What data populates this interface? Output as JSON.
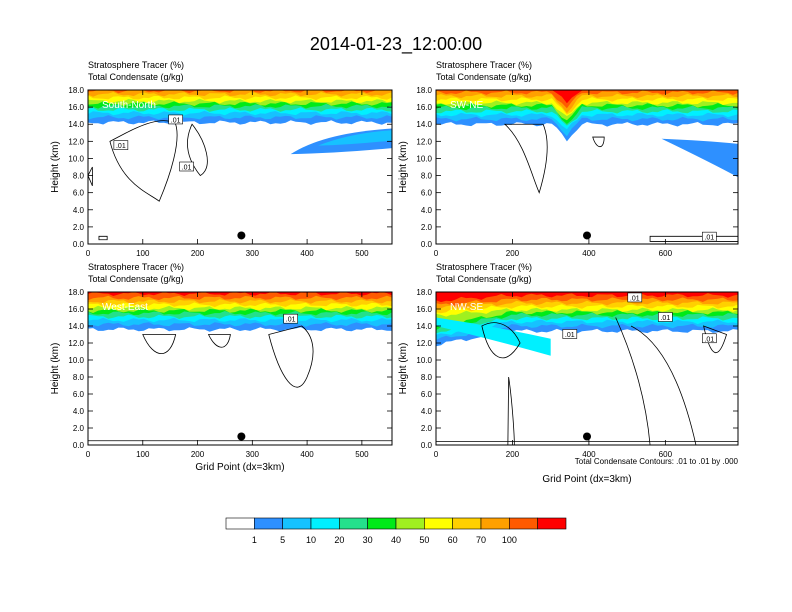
{
  "title": "2014-01-23_12:00:00",
  "label_left": "Stratosphere Tracer   (%)",
  "label_right": "Total Condensate   (g/kg)",
  "panel_left_units": "Stratosphere Tracer",
  "contour_note": "Total Condensate Contours: .01 to .01 by .000",
  "xlabel": "Grid Point (dx=3km)",
  "ylabel": "Height (km)",
  "colorbar": {
    "colors": [
      "#ffffff",
      "#2e90ff",
      "#16c2ff",
      "#00f0ff",
      "#24e08c",
      "#00ea18",
      "#a0f020",
      "#ffff00",
      "#ffd000",
      "#ffa000",
      "#ff5a00",
      "#ff0000"
    ],
    "labels": [
      "1",
      "5",
      "10",
      "20",
      "30",
      "40",
      "50",
      "60",
      "70",
      "100"
    ]
  },
  "chart_data": [
    {
      "type": "heatmap",
      "name": "South-North",
      "subtitle_left": "Stratosphere Tracer   (%)",
      "subtitle_right": "Total Condensate   (g/kg)",
      "xlim": [
        0,
        555
      ],
      "ylim": [
        0,
        18
      ],
      "xticks": [
        0,
        100,
        200,
        300,
        400,
        500
      ],
      "yticks": [
        0,
        2,
        4,
        6,
        8,
        10,
        12,
        14,
        16,
        18
      ],
      "ytick_labels": [
        "0.0",
        "2.0",
        "4.0",
        "6.0",
        "8.0",
        "10.0",
        "12.0",
        "14.0",
        "16.0",
        "18.0"
      ],
      "marker": {
        "x": 280,
        "y": 1.0
      },
      "contour_labels": [
        {
          "text": ".01",
          "x": 60,
          "y": 11.5
        },
        {
          "text": ".01",
          "x": 160,
          "y": 14.5
        },
        {
          "text": ".01",
          "x": 180,
          "y": 9.0
        }
      ]
    },
    {
      "type": "heatmap",
      "name": "SW-NE",
      "subtitle_left": "Stratosphere Tracer   (%)",
      "subtitle_right": "Total Condensate   (g/kg)",
      "xlim": [
        0,
        790
      ],
      "ylim": [
        0,
        18
      ],
      "xticks": [
        0,
        200,
        400,
        600
      ],
      "yticks": [
        0,
        2,
        4,
        6,
        8,
        10,
        12,
        14,
        16,
        18
      ],
      "ytick_labels": [
        "0.0",
        "2.0",
        "4.0",
        "6.0",
        "8.0",
        "10.0",
        "12.0",
        "14.0",
        "16.0",
        "18.0"
      ],
      "marker": {
        "x": 395,
        "y": 1.0
      },
      "contour_labels": [
        {
          "text": ".01",
          "x": 715,
          "y": 0.8
        }
      ]
    },
    {
      "type": "heatmap",
      "name": "West-East",
      "subtitle_left": "Stratosphere Tracer   (%)",
      "subtitle_right": "Total Condensate   (g/kg)",
      "xlim": [
        0,
        555
      ],
      "ylim": [
        0,
        18
      ],
      "xticks": [
        0,
        100,
        200,
        300,
        400,
        500
      ],
      "yticks": [
        0,
        2,
        4,
        6,
        8,
        10,
        12,
        14,
        16,
        18
      ],
      "ytick_labels": [
        "0.0",
        "2.0",
        "4.0",
        "6.0",
        "8.0",
        "10.0",
        "12.0",
        "14.0",
        "16.0",
        "18.0"
      ],
      "marker": {
        "x": 280,
        "y": 1.0
      },
      "contour_labels": [
        {
          "text": ".01",
          "x": 370,
          "y": 14.8
        }
      ]
    },
    {
      "type": "heatmap",
      "name": "NW-SE",
      "subtitle_left": "Stratosphere Tracer   (%)",
      "subtitle_right": "Total Condensate   (g/kg)",
      "xlim": [
        0,
        790
      ],
      "ylim": [
        0,
        18
      ],
      "xticks": [
        0,
        200,
        400,
        600
      ],
      "yticks": [
        0,
        2,
        4,
        6,
        8,
        10,
        12,
        14,
        16,
        18
      ],
      "ytick_labels": [
        "0.0",
        "2.0",
        "4.0",
        "6.0",
        "8.0",
        "10.0",
        "12.0",
        "14.0",
        "16.0",
        "18.0"
      ],
      "marker": {
        "x": 395,
        "y": 1.0
      },
      "contour_labels": [
        {
          "text": ".01",
          "x": 350,
          "y": 13.0
        },
        {
          "text": ".01",
          "x": 520,
          "y": 17.3
        },
        {
          "text": ".01",
          "x": 600,
          "y": 15.0
        },
        {
          "text": ".01",
          "x": 715,
          "y": 12.5
        }
      ]
    }
  ]
}
